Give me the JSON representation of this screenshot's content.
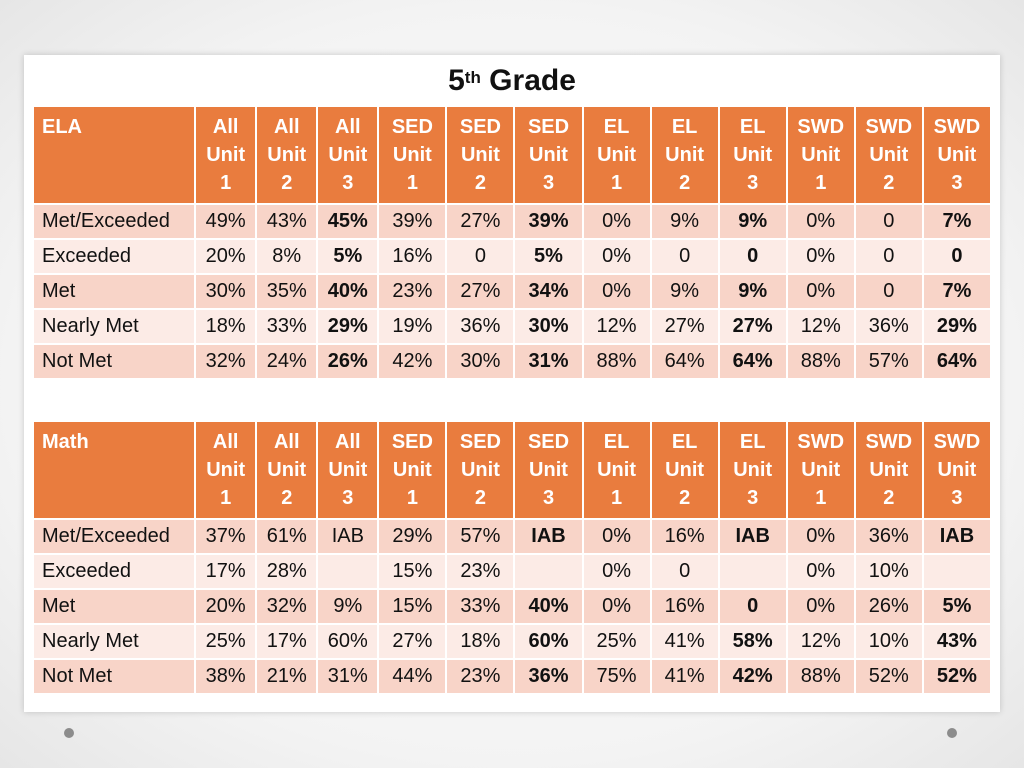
{
  "title": {
    "main": "5",
    "sup": "th",
    "rest": " Grade"
  },
  "colors": {
    "header": "#e97c3e",
    "row_odd": "#f8d4c8",
    "row_even": "#fcebe6"
  },
  "columns": [
    [
      "All",
      "Unit",
      "1"
    ],
    [
      "All",
      "Unit",
      "2"
    ],
    [
      "All",
      "Unit",
      "3"
    ],
    [
      "SED",
      "Unit",
      "1"
    ],
    [
      "SED",
      "Unit",
      "2"
    ],
    [
      "SED",
      "Unit",
      "3"
    ],
    [
      "EL",
      "Unit",
      "1"
    ],
    [
      "EL",
      "Unit",
      "2"
    ],
    [
      "EL",
      "Unit",
      "3"
    ],
    [
      "SWD",
      "Unit",
      "1"
    ],
    [
      "SWD",
      "Unit",
      "2"
    ],
    [
      "SWD",
      "Unit",
      "3"
    ]
  ],
  "ela": {
    "label": "ELA",
    "rows": [
      {
        "label": "Met/Exceeded",
        "values": [
          "49%",
          "43%",
          "45%",
          "39%",
          "27%",
          "39%",
          "0%",
          "9%",
          "9%",
          "0%",
          "0",
          "7%"
        ]
      },
      {
        "label": "Exceeded",
        "values": [
          "20%",
          "8%",
          "5%",
          "16%",
          "0",
          "5%",
          "0%",
          "0",
          "0",
          "0%",
          "0",
          "0"
        ]
      },
      {
        "label": "Met",
        "values": [
          "30%",
          "35%",
          "40%",
          "23%",
          "27%",
          "34%",
          "0%",
          "9%",
          "9%",
          "0%",
          "0",
          "7%"
        ]
      },
      {
        "label": "Nearly Met",
        "values": [
          "18%",
          "33%",
          "29%",
          "19%",
          "36%",
          "30%",
          "12%",
          "27%",
          "27%",
          "12%",
          "36%",
          "29%"
        ]
      },
      {
        "label": "Not Met",
        "values": [
          "32%",
          "24%",
          "26%",
          "42%",
          "30%",
          "31%",
          "88%",
          "64%",
          "64%",
          "88%",
          "57%",
          "64%"
        ]
      }
    ]
  },
  "math": {
    "label": "Math",
    "rows": [
      {
        "label": "Met/Exceeded",
        "values": [
          "37%",
          "61%",
          "IAB",
          "29%",
          "57%",
          "IAB",
          "0%",
          "16%",
          "IAB",
          "0%",
          "36%",
          "IAB"
        ]
      },
      {
        "label": "Exceeded",
        "values": [
          "17%",
          "28%",
          "",
          "15%",
          "23%",
          "",
          "0%",
          "0",
          "",
          "0%",
          "10%",
          ""
        ]
      },
      {
        "label": "Met",
        "values": [
          "20%",
          "32%",
          "9%",
          "15%",
          "33%",
          "40%",
          "0%",
          "16%",
          "0",
          "0%",
          "26%",
          "5%"
        ]
      },
      {
        "label": "Nearly Met",
        "values": [
          "25%",
          "17%",
          "60%",
          "27%",
          "18%",
          "60%",
          "25%",
          "41%",
          "58%",
          "12%",
          "10%",
          "43%"
        ]
      },
      {
        "label": "Not Met",
        "values": [
          "38%",
          "21%",
          "31%",
          "44%",
          "23%",
          "36%",
          "75%",
          "41%",
          "42%",
          "88%",
          "52%",
          "52%"
        ]
      }
    ]
  }
}
